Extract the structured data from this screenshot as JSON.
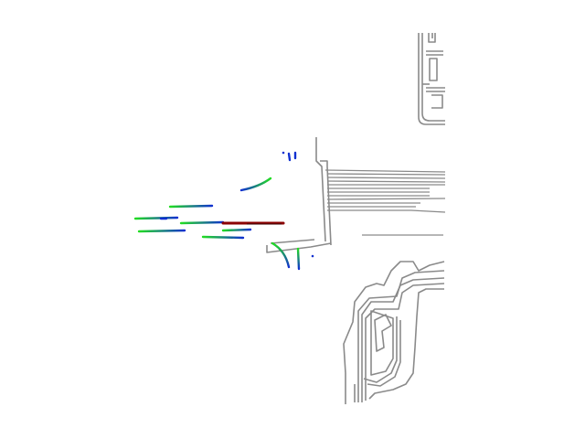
{
  "colors": {
    "background": "#ffffff",
    "map_lines": "#8a8a8a",
    "trajectory_start": "#22dd22",
    "trajectory_end": "#1030d0",
    "ego_trajectory": "#8b0000"
  },
  "legend": []
}
